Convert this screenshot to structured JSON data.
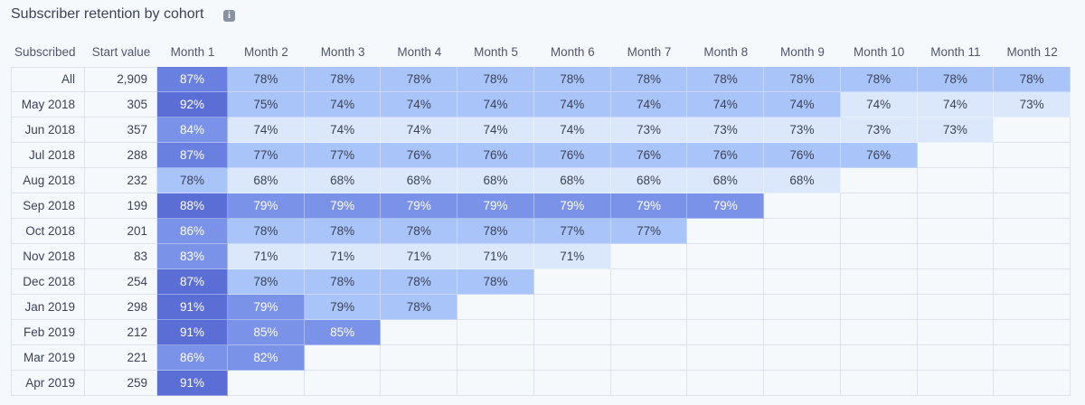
{
  "header": {
    "title": "Subscriber retention by cohort"
  },
  "table": {
    "columns": [
      "Subscribed",
      "Start value",
      "Month 1",
      "Month 2",
      "Month 3",
      "Month 4",
      "Month 5",
      "Month 6",
      "Month 7",
      "Month 8",
      "Month 9",
      "Month 10",
      "Month 11",
      "Month 12"
    ],
    "rows": [
      {
        "label": "All",
        "start": "2,909",
        "cells": [
          "87%",
          "78%",
          "78%",
          "78%",
          "78%",
          "78%",
          "78%",
          "78%",
          "78%",
          "78%",
          "78%",
          "78%"
        ],
        "colors": [
          "#6a80e0",
          "#a9c4f8",
          "#a9c4f8",
          "#a9c4f8",
          "#a9c4f8",
          "#a9c4f8",
          "#a9c4f8",
          "#a9c4f8",
          "#a9c4f8",
          "#a9c4f8",
          "#a9c4f8",
          "#a9c4f8"
        ]
      },
      {
        "label": "May 2018",
        "start": "305",
        "cells": [
          "92%",
          "75%",
          "74%",
          "74%",
          "74%",
          "74%",
          "74%",
          "74%",
          "74%",
          "74%",
          "74%",
          "73%"
        ],
        "colors": [
          "#5b6ed6",
          "#a9c4f8",
          "#a9c4f8",
          "#a9c4f8",
          "#a9c4f8",
          "#a9c4f8",
          "#a9c4f8",
          "#a9c4f8",
          "#a9c4f8",
          "#dbe8fc",
          "#dbe8fc",
          "#dbe8fc"
        ]
      },
      {
        "label": "Jun 2018",
        "start": "357",
        "cells": [
          "84%",
          "74%",
          "74%",
          "74%",
          "74%",
          "74%",
          "73%",
          "73%",
          "73%",
          "73%",
          "73%"
        ],
        "colors": [
          "#7b92e9",
          "#dbe8fc",
          "#dbe8fc",
          "#dbe8fc",
          "#dbe8fc",
          "#dbe8fc",
          "#dbe8fc",
          "#dbe8fc",
          "#dbe8fc",
          "#dbe8fc",
          "#dbe8fc"
        ]
      },
      {
        "label": "Jul 2018",
        "start": "288",
        "cells": [
          "87%",
          "77%",
          "77%",
          "76%",
          "76%",
          "76%",
          "76%",
          "76%",
          "76%",
          "76%"
        ],
        "colors": [
          "#6a80e0",
          "#a9c4f8",
          "#a9c4f8",
          "#a9c4f8",
          "#a9c4f8",
          "#a9c4f8",
          "#a9c4f8",
          "#a9c4f8",
          "#a9c4f8",
          "#a9c4f8"
        ]
      },
      {
        "label": "Aug 2018",
        "start": "232",
        "cells": [
          "78%",
          "68%",
          "68%",
          "68%",
          "68%",
          "68%",
          "68%",
          "68%",
          "68%"
        ],
        "colors": [
          "#a9c4f8",
          "#dbe8fc",
          "#dbe8fc",
          "#dbe8fc",
          "#dbe8fc",
          "#dbe8fc",
          "#dbe8fc",
          "#dbe8fc",
          "#dbe8fc"
        ]
      },
      {
        "label": "Sep 2018",
        "start": "199",
        "cells": [
          "88%",
          "79%",
          "79%",
          "79%",
          "79%",
          "79%",
          "79%",
          "79%"
        ],
        "colors": [
          "#5b6ed6",
          "#7b92e9",
          "#7b92e9",
          "#7b92e9",
          "#7b92e9",
          "#7b92e9",
          "#7b92e9",
          "#7b92e9"
        ]
      },
      {
        "label": "Oct 2018",
        "start": "201",
        "cells": [
          "86%",
          "78%",
          "78%",
          "78%",
          "78%",
          "77%",
          "77%"
        ],
        "colors": [
          "#7b92e9",
          "#a9c4f8",
          "#a9c4f8",
          "#a9c4f8",
          "#a9c4f8",
          "#a9c4f8",
          "#a9c4f8"
        ]
      },
      {
        "label": "Nov 2018",
        "start": "83",
        "cells": [
          "83%",
          "71%",
          "71%",
          "71%",
          "71%",
          "71%"
        ],
        "colors": [
          "#7b92e9",
          "#dbe8fc",
          "#dbe8fc",
          "#dbe8fc",
          "#dbe8fc",
          "#dbe8fc"
        ]
      },
      {
        "label": "Dec 2018",
        "start": "254",
        "cells": [
          "87%",
          "78%",
          "78%",
          "78%",
          "78%"
        ],
        "colors": [
          "#5b6ed6",
          "#a9c4f8",
          "#a9c4f8",
          "#a9c4f8",
          "#a9c4f8"
        ]
      },
      {
        "label": "Jan 2019",
        "start": "298",
        "cells": [
          "91%",
          "79%",
          "79%",
          "78%"
        ],
        "colors": [
          "#5b6ed6",
          "#7b92e9",
          "#a9c4f8",
          "#a9c4f8"
        ]
      },
      {
        "label": "Feb 2019",
        "start": "212",
        "cells": [
          "91%",
          "85%",
          "85%"
        ],
        "colors": [
          "#5b6ed6",
          "#7b92e9",
          "#7b92e9"
        ]
      },
      {
        "label": "Mar 2019",
        "start": "221",
        "cells": [
          "86%",
          "82%"
        ],
        "colors": [
          "#7b92e9",
          "#7b92e9"
        ]
      },
      {
        "label": "Apr 2019",
        "start": "259",
        "cells": [
          "91%"
        ],
        "colors": [
          "#5b6ed6"
        ]
      }
    ]
  }
}
